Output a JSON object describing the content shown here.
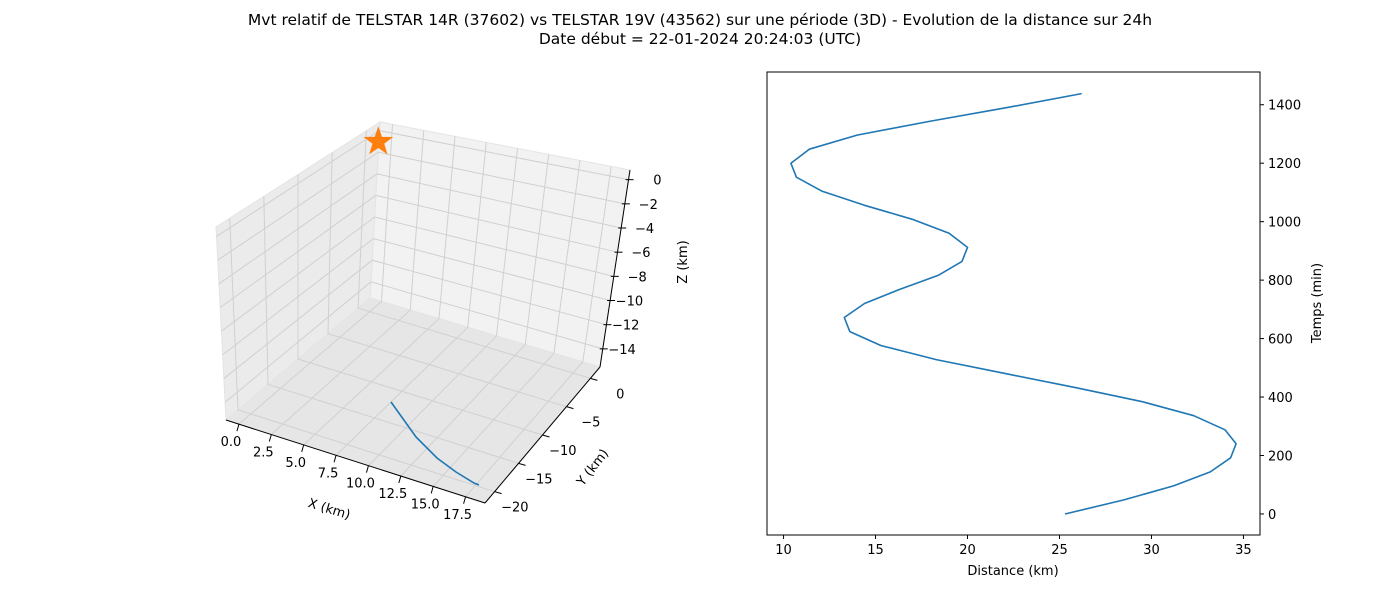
{
  "figure": {
    "title_line1": "Mvt relatif de TELSTAR 14R (37602) vs TELSTAR 19V (43562) sur une période (3D) - Evolution de la distance sur 24h",
    "title_line2": "Date début = 22-01-2024 20:24:03 (UTC)"
  },
  "colors": {
    "series": "#1f77b4",
    "marker": "#ff7f0e",
    "pane": "#f2f2f2",
    "grid": "#d0d0d0"
  },
  "chart_data": [
    {
      "type": "line3d",
      "title": "",
      "xlabel": "X (km)",
      "ylabel": "Y (km)",
      "zlabel": "Z (km)",
      "x_ticks": [
        "0.0",
        "2.5",
        "5.0",
        "7.5",
        "10.0",
        "12.5",
        "15.0",
        "17.5"
      ],
      "y_ticks": [
        "0",
        "−5",
        "−10",
        "−15",
        "−20"
      ],
      "z_ticks": [
        "0",
        "−2",
        "−4",
        "−6",
        "−8",
        "−10",
        "−12",
        "−14"
      ],
      "xlim": [
        -1,
        19
      ],
      "ylim": [
        -22,
        2
      ],
      "zlim": [
        -15.5,
        0.8
      ],
      "grid": true,
      "marker": {
        "shape": "star",
        "x": 0,
        "y": 0,
        "z": 0
      },
      "series": [
        {
          "points": [
            [
              12.8,
              -1.2,
              -15.1
            ],
            [
              13.8,
              -5.0,
              -15.0
            ],
            [
              15.0,
              -9.0,
              -15.0
            ],
            [
              16.3,
              -13.0,
              -15.0
            ],
            [
              17.6,
              -17.0,
              -15.1
            ],
            [
              18.5,
              -19.6,
              -15.2
            ]
          ]
        }
      ]
    },
    {
      "type": "line",
      "title": "",
      "xlabel": "Distance (km)",
      "ylabel": "Temps (min)",
      "y_axis_side": "right",
      "x_ticks": [
        10,
        15,
        20,
        25,
        30,
        35
      ],
      "y_ticks": [
        0,
        200,
        400,
        600,
        800,
        1000,
        1200,
        1400
      ],
      "xlim": [
        9.1,
        35.9
      ],
      "ylim": [
        -72,
        1512
      ],
      "grid": false,
      "series": [
        {
          "x": [
            25.3,
            28.5,
            31.2,
            33.2,
            34.3,
            34.6,
            34.0,
            32.3,
            29.5,
            25.9,
            22.1,
            18.3,
            15.3,
            13.6,
            13.3,
            14.4,
            16.3,
            18.4,
            19.7,
            20.0,
            19.0,
            17.0,
            14.4,
            12.1,
            10.7,
            10.4,
            11.4,
            14.0,
            18.0,
            22.3,
            26.2
          ],
          "y": [
            0,
            48,
            96,
            144,
            192,
            240,
            288,
            336,
            384,
            432,
            480,
            528,
            576,
            624,
            672,
            720,
            768,
            816,
            864,
            912,
            960,
            1008,
            1056,
            1104,
            1152,
            1200,
            1248,
            1296,
            1344,
            1392,
            1438
          ]
        }
      ]
    }
  ]
}
